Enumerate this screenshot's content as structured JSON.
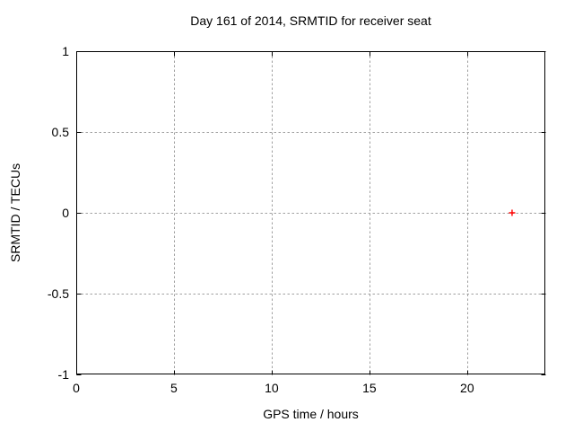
{
  "colors": {
    "background": "#ffffff",
    "border": "#000000",
    "grid": "#a0a0a0",
    "text": "#000000",
    "marker": "#ff0000"
  },
  "chart_data": {
    "type": "scatter",
    "title": "Day 161 of 2014, SRMTID for receiver seat",
    "xlabel": "GPS time / hours",
    "ylabel": "SRMTID / TECUs",
    "xlim": [
      0,
      24
    ],
    "ylim": [
      -1,
      1
    ],
    "xticks": [
      0,
      5,
      10,
      15,
      20
    ],
    "yticks": [
      -1,
      -0.5,
      0,
      0.5,
      1
    ],
    "grid": true,
    "legend": "none",
    "series": [
      {
        "marker": "plus",
        "color": "#ff0000",
        "points": [
          [
            22.3,
            0.0
          ]
        ]
      }
    ]
  }
}
